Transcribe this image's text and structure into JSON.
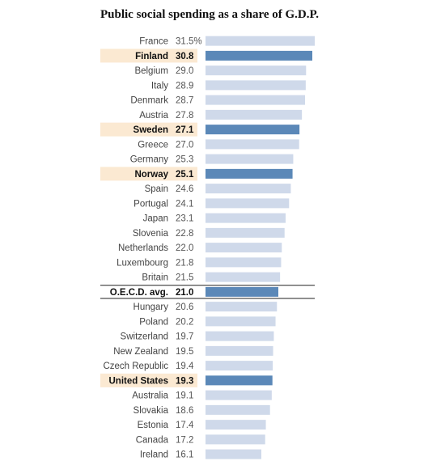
{
  "colors": {
    "bar": "#cfd9ea",
    "bar_highlight": "#5b88b8",
    "label_highlight_bg": "#fbe9d2",
    "avg_line": "#222222"
  },
  "chart_data": {
    "type": "bar",
    "orientation": "horizontal",
    "title": "Public social spending as a share of G.D.P.",
    "categories": [
      "France",
      "Finland",
      "Belgium",
      "Italy",
      "Denmark",
      "Austria",
      "Sweden",
      "Greece",
      "Germany",
      "Norway",
      "Spain",
      "Portugal",
      "Japan",
      "Slovenia",
      "Netherlands",
      "Luxembourg",
      "Britain",
      "O.E.C.D. avg.",
      "Hungary",
      "Poland",
      "Switzerland",
      "New Zealand",
      "Czech Republic",
      "United States",
      "Australia",
      "Slovakia",
      "Estonia",
      "Canada",
      "Ireland"
    ],
    "value_labels": [
      "31.5%",
      "30.8",
      "29.0",
      "28.9",
      "28.7",
      "27.8",
      "27.1",
      "27.0",
      "25.3",
      "25.1",
      "24.6",
      "24.1",
      "23.1",
      "22.8",
      "22.0",
      "21.8",
      "21.5",
      "21.0",
      "20.6",
      "20.2",
      "19.7",
      "19.5",
      "19.4",
      "19.3",
      "19.1",
      "18.6",
      "17.4",
      "17.2",
      "16.1"
    ],
    "values": [
      31.5,
      30.8,
      29.0,
      28.9,
      28.7,
      27.8,
      27.1,
      27.0,
      25.3,
      25.1,
      24.6,
      24.1,
      23.1,
      22.8,
      22.0,
      21.8,
      21.5,
      21.0,
      20.6,
      20.2,
      19.7,
      19.5,
      19.4,
      19.3,
      19.1,
      18.6,
      17.4,
      17.2,
      16.1
    ],
    "highlighted": [
      "Finland",
      "Sweden",
      "Norway",
      "O.E.C.D. avg.",
      "United States"
    ],
    "reference_row": "O.E.C.D. avg.",
    "unit": "% of G.D.P.",
    "xlim": [
      0,
      31.5
    ],
    "grid": false,
    "legend": "none"
  }
}
